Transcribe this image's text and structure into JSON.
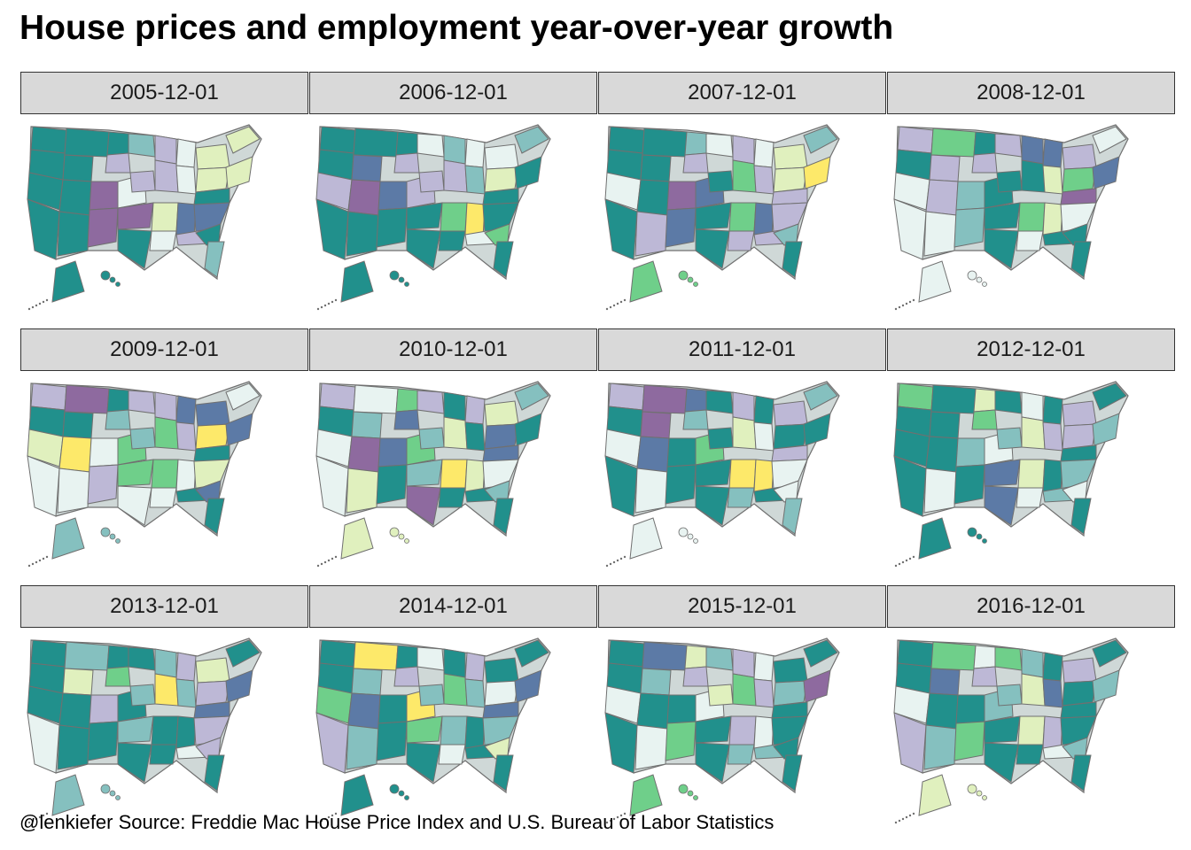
{
  "title": "House prices and employment year-over-year growth",
  "caption": "@lenkiefer Source: Freddie Mac House Price Index and  U.S. Bureau of Labor Statistics",
  "palette": {
    "teal": "#21908c",
    "blue": "#5c7aa6",
    "purple": "#8e6a9f",
    "lavender": "#bdb8d6",
    "light_teal": "#85c0bf",
    "pale": "#e8f3f1",
    "pale_green": "#e0f0be",
    "green": "#6fcf8a",
    "yellow": "#fde96a",
    "border": "#707070",
    "strip": "#d9d9d9"
  },
  "panels": [
    {
      "label": "2005-12-01",
      "region_colors": [
        "teal",
        "teal",
        "teal",
        "teal",
        "teal",
        "light_teal",
        "lavender",
        "lavender",
        "pale",
        "pale_green",
        "pale_green",
        "teal",
        "teal",
        "purple",
        "pale",
        "lavender",
        "lavender",
        "pale",
        "pale_green",
        "pale_green",
        "teal",
        "teal",
        "teal",
        "purple",
        "purple",
        "pale_green",
        "blue",
        "blue",
        "teal",
        "pale",
        "lavender",
        "teal",
        "light_teal",
        "teal"
      ]
    },
    {
      "label": "2006-12-01",
      "region_colors": [
        "teal",
        "teal",
        "teal",
        "teal",
        "blue",
        "pale",
        "lavender",
        "light_teal",
        "pale",
        "pale",
        "light_teal",
        "lavender",
        "purple",
        "blue",
        "lavender",
        "lavender",
        "lavender",
        "light_teal",
        "pale_green",
        "teal",
        "teal",
        "teal",
        "teal",
        "teal",
        "teal",
        "green",
        "yellow",
        "teal",
        "teal",
        "teal",
        "pale",
        "green",
        "teal",
        "teal"
      ]
    },
    {
      "label": "2007-12-01",
      "region_colors": [
        "teal",
        "teal",
        "light_teal",
        "teal",
        "teal",
        "pale",
        "lavender",
        "lavender",
        "pale",
        "pale_green",
        "light_teal",
        "pale",
        "teal",
        "purple",
        "blue",
        "teal",
        "green",
        "lavender",
        "pale_green",
        "yellow",
        "lavender",
        "teal",
        "lavender",
        "blue",
        "teal",
        "green",
        "blue",
        "lavender",
        "teal",
        "lavender",
        "lavender",
        "light_teal",
        "teal",
        "green"
      ]
    },
    {
      "label": "2008-12-01",
      "region_colors": [
        "lavender",
        "green",
        "teal",
        "teal",
        "lavender",
        "lavender",
        "lavender",
        "blue",
        "blue",
        "lavender",
        "pale",
        "pale",
        "lavender",
        "light_teal",
        "teal",
        "teal",
        "teal",
        "pale_green",
        "green",
        "blue",
        "purple",
        "pale",
        "pale",
        "light_teal",
        "teal",
        "green",
        "pale_green",
        "pale",
        "teal",
        "pale",
        "teal",
        "teal",
        "teal",
        "pale"
      ]
    },
    {
      "label": "2009-12-01",
      "region_colors": [
        "lavender",
        "purple",
        "teal",
        "teal",
        "teal",
        "lavender",
        "light_teal",
        "lavender",
        "blue",
        "blue",
        "pale",
        "pale_green",
        "yellow",
        "pale",
        "green",
        "light_teal",
        "green",
        "lavender",
        "yellow",
        "blue",
        "teal",
        "pale",
        "pale",
        "lavender",
        "green",
        "green",
        "pale",
        "pale_green",
        "pale",
        "pale",
        "teal",
        "blue",
        "teal",
        "light_teal"
      ]
    },
    {
      "label": "2010-12-01",
      "region_colors": [
        "lavender",
        "pale",
        "green",
        "teal",
        "light_teal",
        "lavender",
        "blue",
        "teal",
        "lavender",
        "pale_green",
        "light_teal",
        "pale",
        "purple",
        "blue",
        "green",
        "light_teal",
        "pale_green",
        "teal",
        "blue",
        "teal",
        "blue",
        "pale",
        "pale_green",
        "teal",
        "light_teal",
        "yellow",
        "pale_green",
        "pale",
        "purple",
        "teal",
        "teal",
        "light_teal",
        "teal",
        "pale_green"
      ]
    },
    {
      "label": "2011-12-01",
      "region_colors": [
        "lavender",
        "purple",
        "blue",
        "teal",
        "purple",
        "teal",
        "light_teal",
        "lavender",
        "teal",
        "lavender",
        "light_teal",
        "pale",
        "blue",
        "teal",
        "green",
        "teal",
        "pale_green",
        "pale",
        "teal",
        "teal",
        "lavender",
        "teal",
        "pale",
        "teal",
        "teal",
        "yellow",
        "yellow",
        "pale",
        "teal",
        "light_teal",
        "teal",
        "pale",
        "light_teal",
        "pale"
      ]
    },
    {
      "label": "2012-12-01",
      "region_colors": [
        "green",
        "teal",
        "pale_green",
        "teal",
        "teal",
        "teal",
        "green",
        "pale",
        "teal",
        "lavender",
        "teal",
        "teal",
        "teal",
        "light_teal",
        "pale",
        "light_teal",
        "pale_green",
        "lavender",
        "lavender",
        "light_teal",
        "teal",
        "teal",
        "pale",
        "teal",
        "blue",
        "pale_green",
        "teal",
        "light_teal",
        "blue",
        "pale",
        "light_teal",
        "pale",
        "teal",
        "teal"
      ]
    },
    {
      "label": "2013-12-01",
      "region_colors": [
        "teal",
        "light_teal",
        "teal",
        "teal",
        "pale_green",
        "teal",
        "green",
        "light_teal",
        "lavender",
        "pale_green",
        "teal",
        "teal",
        "teal",
        "lavender",
        "teal",
        "light_teal",
        "yellow",
        "light_teal",
        "lavender",
        "blue",
        "blue",
        "pale",
        "teal",
        "teal",
        "light_teal",
        "teal",
        "teal",
        "lavender",
        "teal",
        "teal",
        "pale",
        "lavender",
        "teal",
        "light_teal"
      ]
    },
    {
      "label": "2014-12-01",
      "region_colors": [
        "teal",
        "yellow",
        "teal",
        "teal",
        "light_teal",
        "pale",
        "lavender",
        "teal",
        "lavender",
        "teal",
        "teal",
        "green",
        "blue",
        "teal",
        "yellow",
        "light_teal",
        "green",
        "light_teal",
        "pale",
        "blue",
        "blue",
        "lavender",
        "light_teal",
        "teal",
        "green",
        "light_teal",
        "teal",
        "light_teal",
        "teal",
        "pale",
        "teal",
        "pale_green",
        "teal",
        "teal"
      ]
    },
    {
      "label": "2015-12-01",
      "region_colors": [
        "teal",
        "blue",
        "pale_green",
        "teal",
        "light_teal",
        "light_teal",
        "lavender",
        "lavender",
        "pale",
        "teal",
        "teal",
        "pale",
        "teal",
        "teal",
        "pale",
        "pale_green",
        "green",
        "lavender",
        "light_teal",
        "purple",
        "teal",
        "teal",
        "pale",
        "green",
        "teal",
        "lavender",
        "pale",
        "teal",
        "teal",
        "light_teal",
        "light_teal",
        "teal",
        "teal",
        "green"
      ]
    },
    {
      "label": "2016-12-01",
      "region_colors": [
        "teal",
        "green",
        "pale",
        "teal",
        "blue",
        "green",
        "lavender",
        "light_teal",
        "teal",
        "lavender",
        "teal",
        "pale",
        "teal",
        "teal",
        "light_teal",
        "light_teal",
        "pale_green",
        "blue",
        "teal",
        "light_teal",
        "teal",
        "lavender",
        "light_teal",
        "green",
        "teal",
        "pale_green",
        "lavender",
        "teal",
        "teal",
        "teal",
        "pale",
        "light_teal",
        "teal",
        "pale_green"
      ]
    }
  ]
}
